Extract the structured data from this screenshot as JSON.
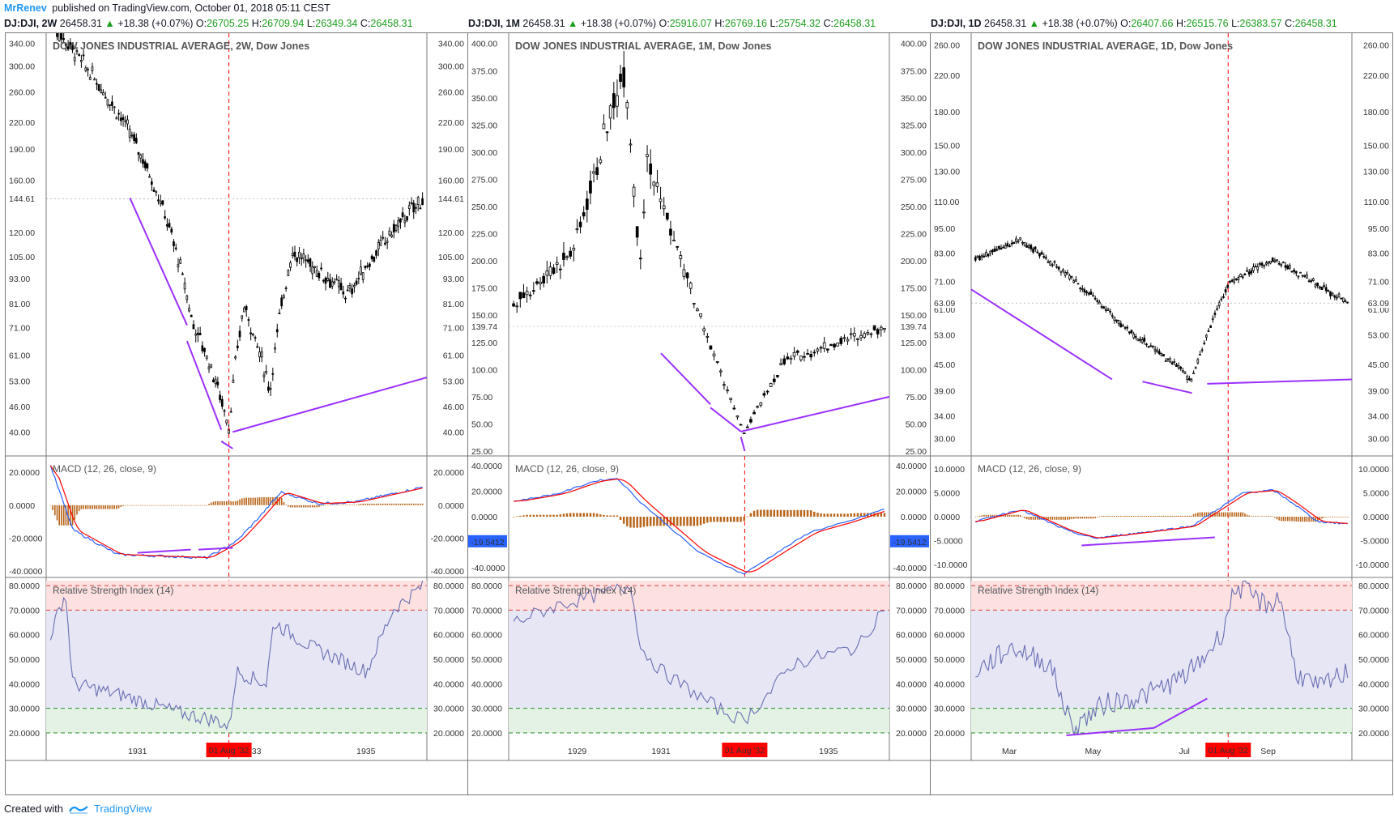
{
  "header": {
    "author": "MrRenev",
    "published": "published on TradingView.com, October 01, 2018 05:11 CEST"
  },
  "footer": {
    "created_with": "Created with",
    "brand": "TradingView"
  },
  "colors": {
    "accent": "#2196f3",
    "up": "#1b9e1b",
    "divergence": "#9b30ff",
    "event_line": "#ff0000",
    "macd": "#2962ff",
    "signal": "#ff0000",
    "hist": "#b8651b",
    "rsi": "#6a6fb3"
  },
  "event_label": "01 Aug '32",
  "panels": [
    {
      "quote": {
        "symbol": "DJ:DJI, 2W",
        "last": "26458.31",
        "change": "+18.38 (+0.07%)",
        "o_label": "O:",
        "o": "26705.25",
        "h_label": "H:",
        "h": "26709.94",
        "l_label": "L:",
        "l": "26349.34",
        "c_label": "C:",
        "c": "26458.31"
      },
      "title": "DOW JONES INDUSTRIAL AVERAGE, 2W, Dow Jones",
      "macd_title": "MACD (12, 26, close, 9)",
      "rsi_title": "Relative Strength Index (14)",
      "price_ticks": [
        "340.00",
        "300.00",
        "260.00",
        "220.00",
        "190.00",
        "160.00",
        "120.00",
        "105.00",
        "93.00",
        "81.00",
        "71.00",
        "61.00",
        "53.00",
        "46.00",
        "40.00"
      ],
      "last_label": "144.61",
      "macd_ticks": [
        "20.0000",
        "0.0000",
        "-20.0000",
        "-40.0000"
      ],
      "rsi_ticks": [
        "80.0000",
        "70.0000",
        "60.0000",
        "50.0000",
        "40.0000",
        "30.0000",
        "20.0000"
      ],
      "x_ticks": [
        "1931",
        "1933",
        "1935"
      ]
    },
    {
      "quote": {
        "symbol": "DJ:DJI, 1M",
        "last": "26458.31",
        "change": "+18.38 (+0.07%)",
        "o_label": "O:",
        "o": "25916.07",
        "h_label": "H:",
        "h": "26769.16",
        "l_label": "L:",
        "l": "25754.32",
        "c_label": "C:",
        "c": "26458.31"
      },
      "title": "DOW JONES INDUSTRIAL AVERAGE, 1M, Dow Jones",
      "macd_title": "MACD (12, 26, close, 9)",
      "rsi_title": "Relative Strength Index (14)",
      "price_ticks": [
        "400.00",
        "375.00",
        "350.00",
        "325.00",
        "300.00",
        "275.00",
        "250.00",
        "225.00",
        "200.00",
        "175.00",
        "150.00",
        "125.00",
        "100.00",
        "75.00",
        "50.00",
        "25.00"
      ],
      "last_label": "139.74",
      "macd_ticks": [
        "40.0000",
        "20.0000",
        "0.0000",
        "-20.0000",
        "-40.0000"
      ],
      "macd_last": "-19.5412",
      "rsi_ticks": [
        "80.0000",
        "70.0000",
        "60.0000",
        "50.0000",
        "40.0000",
        "30.0000",
        "20.0000"
      ],
      "x_ticks": [
        "1929",
        "1931",
        "1933",
        "1935"
      ]
    },
    {
      "quote": {
        "symbol": "DJ:DJI, 1D",
        "last": "26458.31",
        "change": "+18.38 (+0.07%)",
        "o_label": "O:",
        "o": "26407.66",
        "h_label": "H:",
        "h": "26515.76",
        "l_label": "L:",
        "l": "26383.57",
        "c_label": "C:",
        "c": "26458.31"
      },
      "title": "DOW JONES INDUSTRIAL AVERAGE, 1D, Dow Jones",
      "macd_title": "MACD (12, 26, close, 9)",
      "rsi_title": "Relative Strength Index (14)",
      "price_ticks": [
        "260.00",
        "220.00",
        "180.00",
        "150.00",
        "130.00",
        "110.00",
        "95.00",
        "83.00",
        "71.00",
        "61.00",
        "53.00",
        "45.00",
        "39.00",
        "34.00",
        "30.00"
      ],
      "last_label": "63.09",
      "macd_ticks": [
        "10.0000",
        "5.0000",
        "0.0000",
        "-5.0000",
        "-10.0000"
      ],
      "rsi_ticks": [
        "80.0000",
        "70.0000",
        "60.0000",
        "50.0000",
        "40.0000",
        "30.0000",
        "20.0000"
      ],
      "x_ticks": [
        "Mar",
        "May",
        "Jul",
        "Sep"
      ]
    }
  ],
  "chart_data": [
    {
      "type": "candlestick",
      "title": "DOW JONES INDUSTRIAL AVERAGE, 2W, Dow Jones",
      "scale": "log",
      "ylim": [
        36,
        350
      ],
      "x_range": [
        "1929-09",
        "1936-04"
      ],
      "event_date": "1932-08-01",
      "key_points": [
        {
          "x": "1929-09",
          "y": 380
        },
        {
          "x": "1930-04",
          "y": 294
        },
        {
          "x": "1931-02",
          "y": 195
        },
        {
          "x": "1931-12",
          "y": 74
        },
        {
          "x": "1932-07",
          "y": 41
        },
        {
          "x": "1932-09",
          "y": 80
        },
        {
          "x": "1933-02",
          "y": 50
        },
        {
          "x": "1933-07",
          "y": 108
        },
        {
          "x": "1934-07",
          "y": 85
        },
        {
          "x": "1935-12",
          "y": 144.61
        }
      ],
      "macd": {
        "title": "MACD (12, 26, close, 9)",
        "ylim": [
          -42,
          28
        ]
      },
      "rsi": {
        "title": "Relative Strength Index (14)",
        "ylim": [
          18,
          82
        ],
        "overbought": 70,
        "oversold": 30
      }
    },
    {
      "type": "candlestick",
      "title": "DOW JONES INDUSTRIAL AVERAGE, 1M, Dow Jones",
      "scale": "linear",
      "ylim": [
        25,
        405
      ],
      "x_range": [
        "1927-01",
        "1936-04"
      ],
      "event_date": "1932-08-01",
      "key_points": [
        {
          "x": "1927-01",
          "y": 160
        },
        {
          "x": "1928-06",
          "y": 210
        },
        {
          "x": "1929-09",
          "y": 381
        },
        {
          "x": "1929-11",
          "y": 198
        },
        {
          "x": "1930-04",
          "y": 294
        },
        {
          "x": "1931-06",
          "y": 150
        },
        {
          "x": "1932-07",
          "y": 41
        },
        {
          "x": "1933-07",
          "y": 108
        },
        {
          "x": "1935-12",
          "y": 139.74
        }
      ],
      "macd": {
        "title": "MACD (12, 26, close, 9)",
        "ylim": [
          -45,
          45
        ],
        "last": -19.5412
      },
      "rsi": {
        "title": "Relative Strength Index (14)",
        "ylim": [
          18,
          82
        ],
        "overbought": 70,
        "oversold": 30
      }
    },
    {
      "type": "candlestick",
      "title": "DOW JONES INDUSTRIAL AVERAGE, 1D, Dow Jones",
      "scale": "log",
      "ylim": [
        28,
        270
      ],
      "x_range": [
        "1932-02",
        "1932-10"
      ],
      "event_date": "1932-08-01",
      "key_points": [
        {
          "x": "1932-02",
          "y": 80
        },
        {
          "x": "1932-03",
          "y": 89
        },
        {
          "x": "1932-05",
          "y": 55
        },
        {
          "x": "1932-06",
          "y": 44
        },
        {
          "x": "1932-07",
          "y": 41
        },
        {
          "x": "1932-08",
          "y": 70
        },
        {
          "x": "1932-09",
          "y": 80
        },
        {
          "x": "1932-10",
          "y": 63.09
        }
      ],
      "macd": {
        "title": "MACD (12, 26, close, 9)",
        "ylim": [
          -12,
          12
        ]
      },
      "rsi": {
        "title": "Relative Strength Index (14)",
        "ylim": [
          18,
          82
        ],
        "overbought": 70,
        "oversold": 30
      }
    }
  ]
}
